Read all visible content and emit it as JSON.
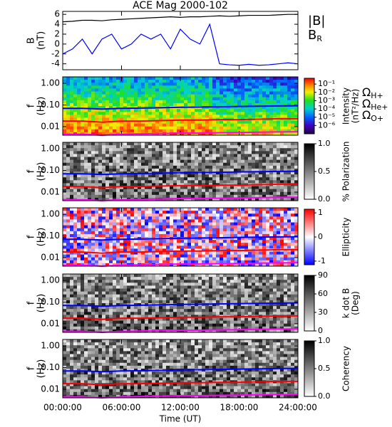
{
  "chart_data": [
    {
      "type": "line",
      "title": "ACE Mag 2000-102",
      "ylabel": [
        "B",
        "(nT)"
      ],
      "x": [
        0,
        1,
        2,
        3,
        4,
        5,
        6,
        7,
        8,
        9,
        10,
        11,
        12,
        13,
        14,
        15,
        16,
        17,
        18,
        19,
        20,
        21,
        22,
        23,
        24
      ],
      "xlim": [
        0,
        24
      ],
      "ylim": [
        -5.2,
        6.6
      ],
      "yticks": [
        -4,
        -2,
        0,
        2,
        4,
        6
      ],
      "series": [
        {
          "name": "|B|",
          "color": "#000000",
          "values": [
            4.5,
            4.6,
            4.8,
            4.8,
            4.7,
            4.9,
            5.0,
            5.1,
            5.2,
            5.3,
            5.4,
            5.5,
            5.4,
            5.5,
            5.5,
            5.6,
            5.7,
            5.6,
            5.7,
            5.8,
            5.8,
            5.8,
            5.9,
            6.0,
            6.0
          ]
        },
        {
          "name": "B",
          "subscript": "R",
          "color": "#0000ff",
          "values": [
            -2,
            -1,
            1,
            -2,
            1,
            2,
            -1,
            0,
            2,
            1,
            2,
            -1,
            3,
            1,
            0,
            4,
            -4,
            -4.2,
            -4.3,
            -4.1,
            -4.3,
            -4.2,
            -4,
            -3.8,
            -4
          ]
        }
      ]
    },
    {
      "type": "spectrogram",
      "colormap": "rainbow",
      "ylabel": [
        "f",
        "(Hz)"
      ],
      "log_y": true,
      "x": [
        0,
        2,
        4,
        6,
        8,
        10,
        12,
        14,
        16,
        18,
        20,
        22,
        24
      ],
      "xlim": [
        0,
        24
      ],
      "ylim": [
        0.004,
        2
      ],
      "yticks": [
        {
          "value": 1,
          "label": "1.00"
        },
        {
          "value": 0.1,
          "label": "0.10"
        },
        {
          "value": 0.01,
          "label": "0.01"
        }
      ],
      "colorbar": {
        "label": [
          "Intensity",
          "(nT²/Hz)"
        ],
        "log": true,
        "lim": [
          1e-07,
          0.5
        ],
        "ticks": [
          {
            "value": 0.1,
            "label": "10⁻¹"
          },
          {
            "value": 0.01,
            "label": "10⁻²"
          },
          {
            "value": 0.001,
            "label": "10⁻³"
          },
          {
            "value": 0.0001,
            "label": "10⁻⁴"
          },
          {
            "value": 1e-05,
            "label": "10⁻⁵"
          },
          {
            "value": 1e-06,
            "label": "10⁻⁶"
          }
        ]
      },
      "series": [
        {
          "name": "Ω",
          "subscript": "H+",
          "color": "#0000ff",
          "values": [
            0.07,
            0.07,
            0.065,
            0.07,
            0.072,
            0.075,
            0.078,
            0.08,
            0.082,
            0.085,
            0.088,
            0.09,
            0.092
          ]
        },
        {
          "name": "Ω",
          "subscript": "He+",
          "color": "#ff0000",
          "values": [
            0.018,
            0.018,
            0.016,
            0.018,
            0.018,
            0.019,
            0.02,
            0.02,
            0.021,
            0.021,
            0.022,
            0.023,
            0.023
          ]
        },
        {
          "name": "Ω",
          "subscript": "O+",
          "color": "#ff00ff",
          "values": [
            0.0045,
            0.0045,
            0.004,
            0.0045,
            0.0046,
            0.0048,
            0.005,
            0.005,
            0.0052,
            0.0053,
            0.0055,
            0.0057,
            0.0058
          ]
        }
      ]
    },
    {
      "type": "spectrogram",
      "colormap": "gray",
      "ylabel": [
        "f",
        "(Hz)"
      ],
      "log_y": true,
      "x": [
        0,
        2,
        4,
        6,
        8,
        10,
        12,
        14,
        16,
        18,
        20,
        22,
        24
      ],
      "xlim": [
        0,
        24
      ],
      "ylim": [
        0.004,
        2
      ],
      "yticks": [
        {
          "value": 1,
          "label": "1.00"
        },
        {
          "value": 0.1,
          "label": "0.10"
        },
        {
          "value": 0.01,
          "label": "0.01"
        }
      ],
      "colorbar": {
        "label": [
          "% Polarization"
        ],
        "lim": [
          0,
          1
        ],
        "ticks": [
          {
            "value": 1,
            "label": "1.0"
          },
          0.5,
          {
            "value": 0,
            "label": "0.0"
          }
        ]
      },
      "series": [
        {
          "color": "#0000ff",
          "values": [
            0.07,
            0.07,
            0.065,
            0.07,
            0.072,
            0.075,
            0.078,
            0.08,
            0.082,
            0.085,
            0.088,
            0.09,
            0.092
          ]
        },
        {
          "color": "#ff0000",
          "values": [
            0.018,
            0.018,
            0.016,
            0.018,
            0.018,
            0.019,
            0.02,
            0.02,
            0.021,
            0.021,
            0.022,
            0.023,
            0.023
          ]
        },
        {
          "color": "#ff00ff",
          "values": [
            0.0045,
            0.0045,
            0.004,
            0.0045,
            0.0046,
            0.0048,
            0.005,
            0.005,
            0.0052,
            0.0053,
            0.0055,
            0.0057,
            0.0058
          ]
        }
      ]
    },
    {
      "type": "spectrogram",
      "colormap": "bwr",
      "ylabel": [
        "f",
        "(Hz)"
      ],
      "log_y": true,
      "x": [
        0,
        2,
        4,
        6,
        8,
        10,
        12,
        14,
        16,
        18,
        20,
        22,
        24
      ],
      "xlim": [
        0,
        24
      ],
      "ylim": [
        0.004,
        2
      ],
      "yticks": [
        {
          "value": 1,
          "label": "1.00"
        },
        {
          "value": 0.1,
          "label": "0.10"
        },
        {
          "value": 0.01,
          "label": "0.01"
        }
      ],
      "colorbar": {
        "label": [
          "Ellipticity"
        ],
        "lim": [
          -1.15,
          1.15
        ],
        "ticks": [
          1,
          0,
          -1
        ]
      },
      "series": [
        {
          "color": "#0000ff",
          "values": [
            0.07,
            0.07,
            0.065,
            0.07,
            0.072,
            0.075,
            0.078,
            0.08,
            0.082,
            0.085,
            0.088,
            0.09,
            0.092
          ]
        },
        {
          "color": "#ff0000",
          "values": [
            0.018,
            0.018,
            0.016,
            0.018,
            0.018,
            0.019,
            0.02,
            0.02,
            0.021,
            0.021,
            0.022,
            0.023,
            0.023
          ]
        },
        {
          "color": "#ff00ff",
          "values": [
            0.0045,
            0.0045,
            0.004,
            0.0045,
            0.0046,
            0.0048,
            0.005,
            0.005,
            0.0052,
            0.0053,
            0.0055,
            0.0057,
            0.0058
          ]
        }
      ]
    },
    {
      "type": "spectrogram",
      "colormap": "gray",
      "ylabel": [
        "f",
        "(Hz)"
      ],
      "log_y": true,
      "x": [
        0,
        2,
        4,
        6,
        8,
        10,
        12,
        14,
        16,
        18,
        20,
        22,
        24
      ],
      "xlim": [
        0,
        24
      ],
      "ylim": [
        0.004,
        2
      ],
      "yticks": [
        {
          "value": 1,
          "label": "1.00"
        },
        {
          "value": 0.1,
          "label": "0.10"
        },
        {
          "value": 0.01,
          "label": "0.01"
        }
      ],
      "colorbar": {
        "label": [
          "k dot B",
          "(Deg)"
        ],
        "lim": [
          0,
          90
        ],
        "ticks": [
          90,
          60,
          30,
          0
        ]
      },
      "series": [
        {
          "color": "#0000ff",
          "values": [
            0.07,
            0.07,
            0.065,
            0.07,
            0.072,
            0.075,
            0.078,
            0.08,
            0.082,
            0.085,
            0.088,
            0.09,
            0.092
          ]
        },
        {
          "color": "#ff0000",
          "values": [
            0.018,
            0.018,
            0.016,
            0.018,
            0.018,
            0.019,
            0.02,
            0.02,
            0.021,
            0.021,
            0.022,
            0.023,
            0.023
          ]
        },
        {
          "color": "#ff00ff",
          "values": [
            0.0045,
            0.0045,
            0.004,
            0.0045,
            0.0046,
            0.0048,
            0.005,
            0.005,
            0.0052,
            0.0053,
            0.0055,
            0.0057,
            0.0058
          ]
        }
      ]
    },
    {
      "type": "spectrogram",
      "colormap": "gray",
      "ylabel": [
        "f",
        "(Hz)"
      ],
      "log_y": true,
      "x": [
        0,
        2,
        4,
        6,
        8,
        10,
        12,
        14,
        16,
        18,
        20,
        22,
        24
      ],
      "xlim": [
        0,
        24
      ],
      "ylim": [
        0.004,
        2
      ],
      "yticks": [
        {
          "value": 1,
          "label": "1.00"
        },
        {
          "value": 0.1,
          "label": "0.10"
        },
        {
          "value": 0.01,
          "label": "0.01"
        }
      ],
      "colorbar": {
        "label": [
          "Coherency"
        ],
        "lim": [
          0,
          1
        ],
        "ticks": [
          {
            "value": 1,
            "label": "1.0"
          },
          0.5,
          {
            "value": 0,
            "label": "0.0"
          }
        ]
      },
      "xlabel": "Time (UT)",
      "xticks": [
        {
          "value": 0,
          "label": "00:00:00"
        },
        {
          "value": 6,
          "label": "06:00:00"
        },
        {
          "value": 12,
          "label": "12:00:00"
        },
        {
          "value": 18,
          "label": "18:00:00"
        },
        {
          "value": 24,
          "label": "24:00:00"
        }
      ],
      "series": [
        {
          "color": "#0000ff",
          "values": [
            0.07,
            0.07,
            0.065,
            0.07,
            0.072,
            0.075,
            0.078,
            0.08,
            0.082,
            0.085,
            0.088,
            0.09,
            0.092
          ]
        },
        {
          "color": "#ff0000",
          "values": [
            0.018,
            0.018,
            0.016,
            0.018,
            0.018,
            0.019,
            0.02,
            0.02,
            0.021,
            0.021,
            0.022,
            0.023,
            0.023
          ]
        },
        {
          "color": "#ff00ff",
          "values": [
            0.0045,
            0.0045,
            0.004,
            0.0045,
            0.0046,
            0.0048,
            0.005,
            0.005,
            0.0052,
            0.0053,
            0.0055,
            0.0057,
            0.0058
          ]
        }
      ]
    }
  ]
}
